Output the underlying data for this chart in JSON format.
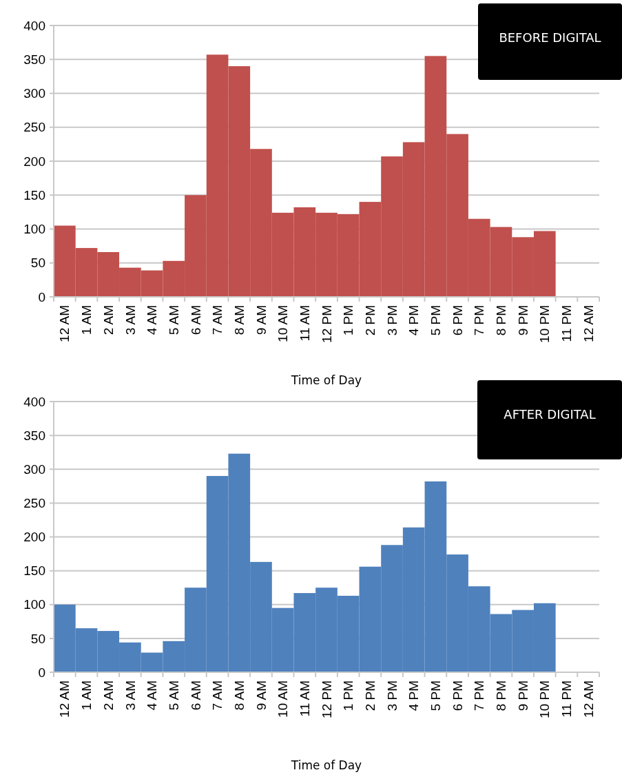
{
  "chart_data": [
    {
      "type": "bar",
      "xlabel": "Time of Day",
      "annotations": [
        "BEFORE DIGITAL"
      ],
      "categories": [
        "12 AM",
        "1 AM",
        "2 AM",
        "3 AM",
        "4 AM",
        "5 AM",
        "6 AM",
        "7 AM",
        "8 AM",
        "9 AM",
        "10 AM",
        "11 AM",
        "12 PM",
        "1 PM",
        "2 PM",
        "3 PM",
        "4 PM",
        "5 PM",
        "6 PM",
        "7 PM",
        "8 PM",
        "9 PM",
        "10 PM",
        "11 PM",
        "12 AM"
      ],
      "series": [
        {
          "color": "#c0504d",
          "values": [
            105,
            72,
            66,
            43,
            39,
            53,
            150,
            357,
            340,
            218,
            124,
            132,
            124,
            122,
            140,
            207,
            228,
            355,
            240,
            115,
            103,
            88,
            97,
            null,
            null
          ]
        }
      ],
      "ylim": [
        0,
        400
      ],
      "yticks": [
        0,
        50,
        100,
        150,
        200,
        250,
        300,
        350,
        400
      ],
      "grid": "y"
    },
    {
      "type": "bar",
      "xlabel": "Time of Day",
      "annotations": [
        "AFTER DIGITAL"
      ],
      "categories": [
        "12 AM",
        "1 AM",
        "2 AM",
        "3 AM",
        "4 AM",
        "5 AM",
        "6 AM",
        "7 AM",
        "8 AM",
        "9 AM",
        "10 AM",
        "11 AM",
        "12 PM",
        "1 PM",
        "2 PM",
        "3 PM",
        "4 PM",
        "5 PM",
        "6 PM",
        "7 PM",
        "8 PM",
        "9 PM",
        "10 PM",
        "11 PM",
        "12 AM"
      ],
      "series": [
        {
          "color": "#4f81bd",
          "values": [
            100,
            65,
            61,
            44,
            29,
            46,
            125,
            290,
            323,
            163,
            95,
            117,
            125,
            113,
            156,
            188,
            214,
            282,
            174,
            127,
            86,
            92,
            102,
            null,
            null
          ]
        }
      ],
      "ylim": [
        0,
        400
      ],
      "yticks": [
        0,
        50,
        100,
        150,
        200,
        250,
        300,
        350,
        400
      ],
      "grid": "y"
    }
  ]
}
